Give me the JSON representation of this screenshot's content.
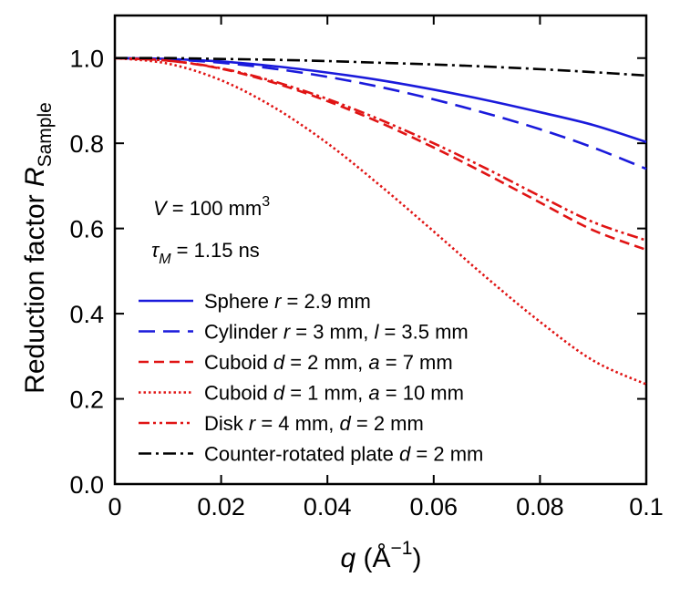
{
  "chart_data": {
    "type": "line",
    "title": "",
    "xlabel": {
      "var": "q",
      "unit_open": " (",
      "unit": "Å",
      "exp": "−1",
      "unit_close": ")"
    },
    "ylabel": {
      "text": "Reduction factor ",
      "var": "R",
      "sub": "Sample"
    },
    "xlim": [
      0,
      0.1
    ],
    "ylim": [
      0,
      1.1
    ],
    "x_ticks": [
      0,
      0.02,
      0.04,
      0.06,
      0.08,
      0.1
    ],
    "x_tick_labels": [
      "0",
      "0.02",
      "0.04",
      "0.06",
      "0.08",
      "0.1"
    ],
    "y_ticks": [
      0,
      0.2,
      0.4,
      0.6,
      0.8,
      1.0
    ],
    "y_tick_labels": [
      "0.0",
      "0.2",
      "0.4",
      "0.6",
      "0.8",
      "1.0"
    ],
    "grid": false,
    "annotations": [
      {
        "var": "V",
        "text": " = 100 mm",
        "sup": "3"
      },
      {
        "var": "τ",
        "sub": "M",
        "text": " = 1.15 ns"
      }
    ],
    "legend_position": "lower-left",
    "series": [
      {
        "name": "Sphere",
        "color": "#1a1adb",
        "style": "solid",
        "label": [
          {
            "t": "Sphere "
          },
          {
            "t": "r",
            "i": true
          },
          {
            "t": " = 2.9 mm"
          }
        ],
        "x": [
          0,
          0.01,
          0.02,
          0.03,
          0.04,
          0.05,
          0.06,
          0.07,
          0.08,
          0.09,
          0.1
        ],
        "y": [
          1.0,
          0.998,
          0.992,
          0.981,
          0.966,
          0.948,
          0.926,
          0.901,
          0.873,
          0.843,
          0.803
        ]
      },
      {
        "name": "Cylinder",
        "color": "#1a1adb",
        "style": "dashed-long",
        "label": [
          {
            "t": "Cylinder "
          },
          {
            "t": "r",
            "i": true
          },
          {
            "t": " = 3 mm, "
          },
          {
            "t": "l",
            "i": true
          },
          {
            "t": " = 3.5 mm"
          }
        ],
        "x": [
          0,
          0.01,
          0.02,
          0.03,
          0.04,
          0.05,
          0.06,
          0.07,
          0.08,
          0.09,
          0.1
        ],
        "y": [
          1.0,
          0.997,
          0.989,
          0.975,
          0.956,
          0.932,
          0.903,
          0.87,
          0.833,
          0.79,
          0.74
        ]
      },
      {
        "name": "Cuboid d = 2 mm",
        "color": "#e01414",
        "style": "dashed",
        "label": [
          {
            "t": "Cuboid "
          },
          {
            "t": "d",
            "i": true
          },
          {
            "t": " = 2 mm, "
          },
          {
            "t": "a",
            "i": true
          },
          {
            "t": " = 7 mm"
          }
        ],
        "x": [
          0,
          0.01,
          0.02,
          0.03,
          0.04,
          0.05,
          0.06,
          0.07,
          0.08,
          0.09,
          0.1
        ],
        "y": [
          1.0,
          0.994,
          0.975,
          0.942,
          0.899,
          0.848,
          0.79,
          0.727,
          0.661,
          0.596,
          0.55
        ]
      },
      {
        "name": "Cuboid d = 1 mm",
        "color": "#e01414",
        "style": "dotted",
        "label": [
          {
            "t": "Cuboid "
          },
          {
            "t": "d",
            "i": true
          },
          {
            "t": " = 1 mm, "
          },
          {
            "t": "a",
            "i": true
          },
          {
            "t": " = 10 mm"
          }
        ],
        "x": [
          0,
          0.01,
          0.02,
          0.03,
          0.04,
          0.05,
          0.06,
          0.07,
          0.08,
          0.09,
          0.1
        ],
        "y": [
          1.0,
          0.987,
          0.948,
          0.884,
          0.8,
          0.7,
          0.593,
          0.484,
          0.381,
          0.29,
          0.234
        ]
      },
      {
        "name": "Disk",
        "color": "#e01414",
        "style": "dashdotdot",
        "label": [
          {
            "t": "Disk "
          },
          {
            "t": "r",
            "i": true
          },
          {
            "t": " = 4 mm, "
          },
          {
            "t": "d",
            "i": true
          },
          {
            "t": " = 2 mm"
          }
        ],
        "x": [
          0,
          0.01,
          0.02,
          0.03,
          0.04,
          0.05,
          0.06,
          0.07,
          0.08,
          0.09,
          0.1
        ],
        "y": [
          1.0,
          0.994,
          0.976,
          0.945,
          0.904,
          0.855,
          0.8,
          0.74,
          0.676,
          0.615,
          0.572
        ]
      },
      {
        "name": "Counter-rotated plate",
        "color": "#000000",
        "style": "dashdot",
        "label": [
          {
            "t": "Counter-rotated plate "
          },
          {
            "t": "d",
            "i": true
          },
          {
            "t": " = 2 mm"
          }
        ],
        "x": [
          0,
          0.01,
          0.02,
          0.03,
          0.04,
          0.05,
          0.06,
          0.07,
          0.08,
          0.09,
          0.1
        ],
        "y": [
          1.0,
          1.0,
          0.998,
          0.996,
          0.993,
          0.989,
          0.985,
          0.98,
          0.974,
          0.967,
          0.959
        ]
      }
    ]
  }
}
